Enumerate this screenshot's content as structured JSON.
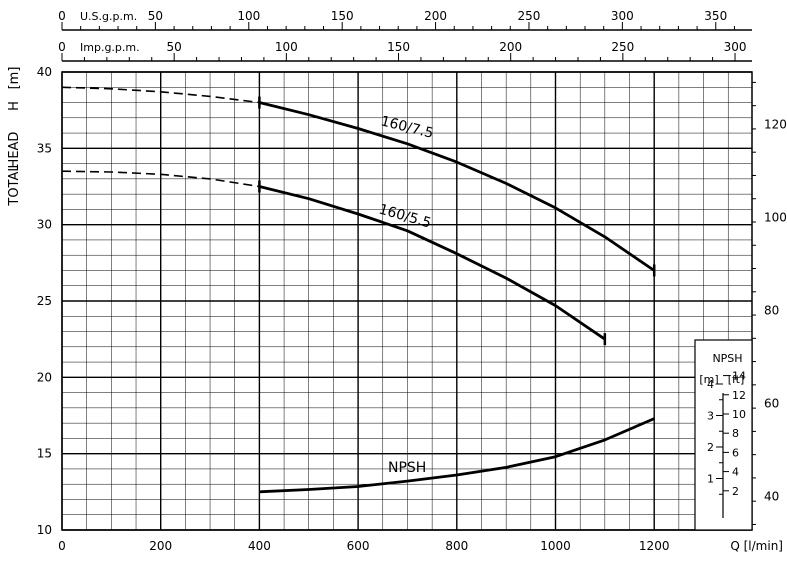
{
  "chart_data": {
    "type": "line",
    "xlabel": "Q [l/min]",
    "ylabel_parts": [
      "TOTAL",
      "HEAD",
      "H",
      "[m]"
    ],
    "xlim": [
      0,
      1400
    ],
    "ylim": [
      10,
      40
    ],
    "x_ticks": [
      0,
      200,
      400,
      600,
      800,
      1000,
      1200
    ],
    "y_ticks": [
      10,
      15,
      20,
      25,
      30,
      35,
      40
    ],
    "grid": true,
    "top_axes": [
      {
        "label": "U.S.g.p.m.",
        "ticks": [
          0,
          50,
          100,
          150,
          200,
          250,
          300,
          350
        ],
        "lpm_per_unit": 3.785
      },
      {
        "label": "Imp.g.p.m.",
        "ticks": [
          0,
          50,
          100,
          150,
          200,
          250,
          300
        ],
        "lpm_per_unit": 4.546
      }
    ],
    "right_axis": {
      "unit": "ft",
      "ticks": [
        40,
        60,
        80,
        100,
        120
      ],
      "m_per_unit": 0.3048
    },
    "series": [
      {
        "name": "160/7.5",
        "dashed_until_x": 400,
        "x": [
          0,
          100,
          200,
          300,
          400,
          500,
          600,
          700,
          800,
          900,
          1000,
          1100,
          1200
        ],
        "y": [
          39.0,
          38.9,
          38.7,
          38.4,
          38.0,
          37.2,
          36.3,
          35.3,
          34.1,
          32.7,
          31.1,
          29.2,
          27.0
        ]
      },
      {
        "name": "160/5.5",
        "dashed_until_x": 400,
        "x": [
          0,
          100,
          200,
          300,
          400,
          500,
          600,
          700,
          800,
          900,
          1000,
          1100
        ],
        "y": [
          33.5,
          33.45,
          33.3,
          33.0,
          32.5,
          31.7,
          30.7,
          29.6,
          28.1,
          26.5,
          24.7,
          22.5
        ]
      },
      {
        "name": "NPSH",
        "x": [
          400,
          500,
          600,
          700,
          800,
          900,
          1000,
          1100,
          1200
        ],
        "y": [
          12.5,
          12.65,
          12.85,
          13.2,
          13.6,
          14.1,
          14.8,
          15.9,
          17.3
        ]
      }
    ],
    "npsh_inset": {
      "title": "NPSH",
      "unit_m": "[m]",
      "unit_ft": "[ft]",
      "m_ticks": [
        1,
        2,
        3,
        4
      ],
      "ft_ticks": [
        2,
        4,
        6,
        8,
        10,
        12,
        14
      ]
    }
  }
}
